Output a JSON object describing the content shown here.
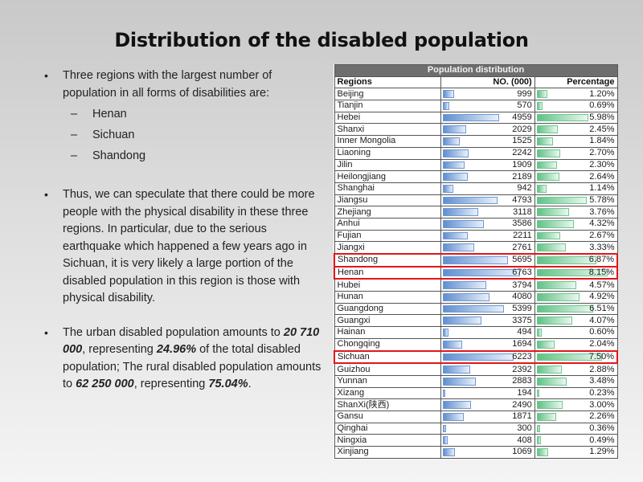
{
  "title": "Distribution of the disabled population",
  "left": {
    "bullet1": "Three regions with the largest number of population in all forms of disabilities are:",
    "sub_items": [
      "Henan",
      "Sichuan",
      "Shandong"
    ],
    "bullet2": "Thus, we can speculate that there could be more people with the physical disability in these three regions. In particular, due to the serious earthquake which happened a few years ago in Sichuan, it is very likely a large portion of the disabled population in this region is those with physical disability.",
    "bullet3": {
      "t1": "The urban disabled population amounts to ",
      "b1": "20 710 000",
      "t2": ", representing ",
      "b2": "24.96%",
      "t3": " of the total disabled population; The rural disabled population amounts to ",
      "b3": "62 250 000",
      "t4": ", representing ",
      "b4": "75.04%",
      "t5": "."
    }
  },
  "chart_data": {
    "type": "table",
    "title": "Population distribution",
    "columns": [
      "Regions",
      "NO. (000)",
      "Percentage"
    ],
    "bar_colors": {
      "number": "#5f8fd0",
      "percentage": "#5fc285",
      "highlight": "#e0161b"
    },
    "highlighted": [
      "Shandong",
      "Henan",
      "Sichuan"
    ],
    "rows": [
      {
        "region": "Beijing",
        "number": 999,
        "number_label": "999",
        "pct": 1.2,
        "pct_label": "1.20%"
      },
      {
        "region": "Tianjin",
        "number": 570,
        "number_label": "570",
        "pct": 0.69,
        "pct_label": "0.69%"
      },
      {
        "region": "Hebei",
        "number": 4959,
        "number_label": "4959",
        "pct": 5.98,
        "pct_label": "5.98%"
      },
      {
        "region": "Shanxi",
        "number": 2029,
        "number_label": "2029",
        "pct": 2.45,
        "pct_label": "2.45%"
      },
      {
        "region": "Inner Mongolia",
        "number": 1525,
        "number_label": "1525",
        "pct": 1.84,
        "pct_label": "1.84%"
      },
      {
        "region": "Liaoning",
        "number": 2242,
        "number_label": "2242",
        "pct": 2.7,
        "pct_label": "2.70%"
      },
      {
        "region": "Jilin",
        "number": 1909,
        "number_label": "1909",
        "pct": 2.3,
        "pct_label": "2.30%"
      },
      {
        "region": "Heilongjiang",
        "number": 2189,
        "number_label": "2189",
        "pct": 2.64,
        "pct_label": "2.64%"
      },
      {
        "region": "Shanghai",
        "number": 942,
        "number_label": "942",
        "pct": 1.14,
        "pct_label": "1.14%"
      },
      {
        "region": "Jiangsu",
        "number": 4793,
        "number_label": "4793",
        "pct": 5.78,
        "pct_label": "5.78%"
      },
      {
        "region": "Zhejiang",
        "number": 3118,
        "number_label": "3118",
        "pct": 3.76,
        "pct_label": "3.76%"
      },
      {
        "region": "Anhui",
        "number": 3586,
        "number_label": "3586",
        "pct": 4.32,
        "pct_label": "4.32%"
      },
      {
        "region": "Fujian",
        "number": 2211,
        "number_label": "2211",
        "pct": 2.67,
        "pct_label": "2.67%"
      },
      {
        "region": "Jiangxi",
        "number": 2761,
        "number_label": "2761",
        "pct": 3.33,
        "pct_label": "3.33%"
      },
      {
        "region": "Shandong",
        "number": 5695,
        "number_label": "5695",
        "pct": 6.87,
        "pct_label": "6.87%"
      },
      {
        "region": "Henan",
        "number": 6763,
        "number_label": "6763",
        "pct": 8.15,
        "pct_label": "8.15%"
      },
      {
        "region": "Hubei",
        "number": 3794,
        "number_label": "3794",
        "pct": 4.57,
        "pct_label": "4.57%"
      },
      {
        "region": "Hunan",
        "number": 4080,
        "number_label": "4080",
        "pct": 4.92,
        "pct_label": "4.92%"
      },
      {
        "region": "Guangdong",
        "number": 5399,
        "number_label": "5399",
        "pct": 6.51,
        "pct_label": "6.51%"
      },
      {
        "region": "Guangxi",
        "number": 3375,
        "number_label": "3375",
        "pct": 4.07,
        "pct_label": "4.07%"
      },
      {
        "region": "Hainan",
        "number": 494,
        "number_label": "494",
        "pct": 0.6,
        "pct_label": "0.60%"
      },
      {
        "region": "Chongqing",
        "number": 1694,
        "number_label": "1694",
        "pct": 2.04,
        "pct_label": "2.04%"
      },
      {
        "region": "Sichuan",
        "number": 6223,
        "number_label": "6223",
        "pct": 7.5,
        "pct_label": "7.50%"
      },
      {
        "region": "Guizhou",
        "number": 2392,
        "number_label": "2392",
        "pct": 2.88,
        "pct_label": "2.88%"
      },
      {
        "region": "Yunnan",
        "number": 2883,
        "number_label": "2883",
        "pct": 3.48,
        "pct_label": "3.48%"
      },
      {
        "region": "Xizang",
        "number": 194,
        "number_label": "194",
        "pct": 0.23,
        "pct_label": "0.23%"
      },
      {
        "region": "ShanXi(陕西)",
        "number": 2490,
        "number_label": "2490",
        "pct": 3.0,
        "pct_label": "3.00%"
      },
      {
        "region": "Gansu",
        "number": 1871,
        "number_label": "1871",
        "pct": 2.26,
        "pct_label": "2.26%"
      },
      {
        "region": "Qinghai",
        "number": 300,
        "number_label": "300",
        "pct": 0.36,
        "pct_label": "0.36%"
      },
      {
        "region": "Ningxia",
        "number": 408,
        "number_label": "408",
        "pct": 0.49,
        "pct_label": "0.49%"
      },
      {
        "region": "Xinjiang",
        "number": 1069,
        "number_label": "1069",
        "pct": 1.29,
        "pct_label": "1.29%"
      }
    ]
  }
}
